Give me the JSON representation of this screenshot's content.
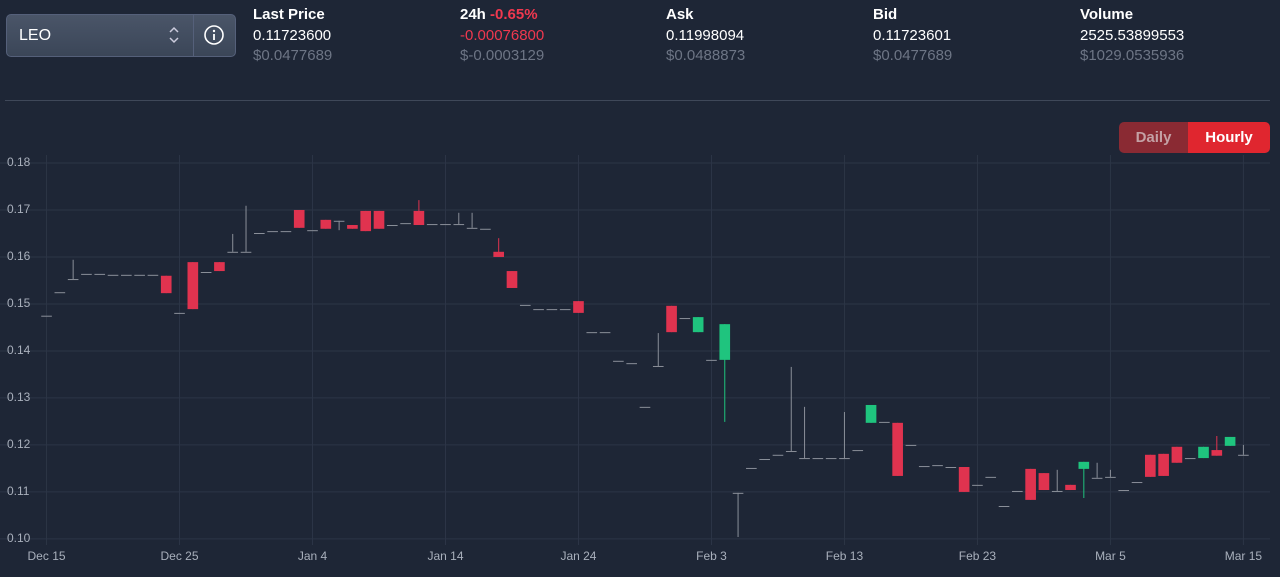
{
  "header": {
    "pair": "LEO",
    "stats": [
      {
        "label": "Last Price",
        "value": "0.11723600",
        "usd": "$0.0477689"
      },
      {
        "label": "24h",
        "change": "-0.65%",
        "value": "-0.00076800",
        "usd": "$-0.0003129"
      },
      {
        "label": "Ask",
        "value": "0.11998094",
        "usd": "$0.0488873"
      },
      {
        "label": "Bid",
        "value": "0.11723601",
        "usd": "$0.0477689"
      },
      {
        "label": "Volume",
        "value": "2525.53899553",
        "usd": "$1029.0535936"
      }
    ],
    "buttons": [
      "Daily",
      "Hourly"
    ]
  },
  "chart_data": {
    "type": "candlestick",
    "x": [
      0,
      1,
      2,
      3,
      4,
      5,
      6,
      7,
      8,
      9,
      10,
      11,
      12,
      13,
      14,
      15,
      16,
      17,
      18,
      19,
      20,
      21,
      22,
      23,
      24,
      25,
      26,
      27,
      28,
      29,
      30,
      31,
      32,
      33,
      34,
      35,
      36,
      37,
      38,
      39,
      40,
      41,
      42,
      43,
      44,
      45,
      46,
      47,
      48,
      49,
      50,
      51,
      52,
      53,
      54,
      55,
      56,
      57,
      58,
      59,
      60,
      61,
      62,
      63,
      64,
      65,
      66,
      67,
      68,
      69,
      70,
      71,
      72,
      73,
      74,
      75,
      76,
      77,
      78,
      79,
      80,
      81,
      82,
      83,
      84,
      85,
      86,
      87,
      88,
      89,
      90
    ],
    "open": [
      0.1475,
      0.1525,
      0.1553,
      0.1564,
      0.1564,
      0.1562,
      0.1562,
      0.1562,
      0.1562,
      0.156,
      0.1481,
      0.1589,
      0.1568,
      0.1589,
      0.1611,
      0.1611,
      0.1651,
      0.1655,
      0.1655,
      0.17,
      0.1657,
      0.1679,
      0.1677,
      0.1668,
      0.1698,
      0.1698,
      0.1668,
      0.1672,
      0.1698,
      0.167,
      0.167,
      0.167,
      0.1662,
      0.166,
      0.1611,
      0.157,
      0.1498,
      0.1489,
      0.1489,
      0.1489,
      0.1506,
      0.144,
      0.144,
      0.1379,
      0.1374,
      0.1281,
      0.1368,
      0.1496,
      0.147,
      0.144,
      0.1381,
      0.1381,
      0.1098,
      0.1151,
      0.117,
      0.1179,
      0.1187,
      0.1172,
      0.1172,
      0.1172,
      0.1172,
      0.1189,
      0.1247,
      0.1249,
      0.1247,
      0.12,
      0.1155,
      0.1157,
      0.1153,
      0.1153,
      0.1115,
      0.1132,
      0.107,
      0.1102,
      0.1149,
      0.114,
      0.1102,
      0.1115,
      0.1149,
      0.113,
      0.1132,
      0.1104,
      0.1121,
      0.1179,
      0.1181,
      0.1196,
      0.1172,
      0.1172,
      0.1189,
      0.1198,
      0.1179
    ],
    "high": [
      0.1475,
      0.1525,
      0.1594,
      0.1564,
      0.1564,
      0.1562,
      0.1562,
      0.1562,
      0.1562,
      0.156,
      0.1481,
      0.1589,
      0.1568,
      0.1589,
      0.1649,
      0.1709,
      0.1651,
      0.1655,
      0.1655,
      0.17,
      0.1657,
      0.1679,
      0.1677,
      0.1668,
      0.1698,
      0.1698,
      0.1668,
      0.1672,
      0.1721,
      0.167,
      0.167,
      0.1694,
      0.1694,
      0.166,
      0.164,
      0.157,
      0.1498,
      0.1489,
      0.1489,
      0.1489,
      0.1506,
      0.144,
      0.144,
      0.1379,
      0.1374,
      0.1281,
      0.1438,
      0.1496,
      0.147,
      0.1472,
      0.1381,
      0.1457,
      0.1098,
      0.1151,
      0.117,
      0.1179,
      0.1366,
      0.1281,
      0.1172,
      0.1172,
      0.127,
      0.1189,
      0.1285,
      0.1249,
      0.1247,
      0.12,
      0.1155,
      0.1157,
      0.1153,
      0.1153,
      0.1115,
      0.1132,
      0.107,
      0.1102,
      0.1149,
      0.114,
      0.1147,
      0.1115,
      0.1164,
      0.1162,
      0.1147,
      0.1104,
      0.1121,
      0.1179,
      0.1181,
      0.1196,
      0.1172,
      0.1196,
      0.1219,
      0.1217,
      0.12
    ],
    "low": [
      0.1475,
      0.1525,
      0.1553,
      0.1564,
      0.1564,
      0.1562,
      0.1562,
      0.1562,
      0.1562,
      0.1523,
      0.1481,
      0.1489,
      0.1568,
      0.157,
      0.1611,
      0.1611,
      0.1651,
      0.1655,
      0.1655,
      0.1662,
      0.1657,
      0.166,
      0.1657,
      0.166,
      0.1655,
      0.166,
      0.1668,
      0.1672,
      0.1668,
      0.167,
      0.167,
      0.167,
      0.1662,
      0.166,
      0.16,
      0.1534,
      0.1498,
      0.1489,
      0.1489,
      0.1489,
      0.1481,
      0.144,
      0.144,
      0.1379,
      0.1374,
      0.1281,
      0.1368,
      0.144,
      0.147,
      0.144,
      0.1381,
      0.1249,
      0.1004,
      0.1151,
      0.117,
      0.1179,
      0.1187,
      0.1172,
      0.1172,
      0.1172,
      0.1172,
      0.1189,
      0.1247,
      0.1249,
      0.1134,
      0.12,
      0.1155,
      0.1157,
      0.1153,
      0.11,
      0.1115,
      0.1132,
      0.107,
      0.1102,
      0.1083,
      0.1104,
      0.1102,
      0.1104,
      0.1087,
      0.113,
      0.1132,
      0.1104,
      0.1121,
      0.1132,
      0.1134,
      0.1162,
      0.1172,
      0.1172,
      0.1177,
      0.1198,
      0.1179
    ],
    "close": [
      0.1475,
      0.1525,
      0.1553,
      0.1564,
      0.1564,
      0.1562,
      0.1562,
      0.1562,
      0.1562,
      0.1523,
      0.1481,
      0.1489,
      0.1568,
      0.157,
      0.1611,
      0.1611,
      0.1651,
      0.1655,
      0.1655,
      0.1662,
      0.1657,
      0.166,
      0.1677,
      0.166,
      0.1655,
      0.166,
      0.1668,
      0.1672,
      0.1668,
      0.167,
      0.167,
      0.167,
      0.1662,
      0.166,
      0.16,
      0.1534,
      0.1498,
      0.1489,
      0.1489,
      0.1489,
      0.1481,
      0.144,
      0.144,
      0.1379,
      0.1374,
      0.1281,
      0.1368,
      0.144,
      0.147,
      0.1472,
      0.1381,
      0.1457,
      0.1098,
      0.1151,
      0.117,
      0.1179,
      0.1187,
      0.1172,
      0.1172,
      0.1172,
      0.1172,
      0.1189,
      0.1285,
      0.1249,
      0.1134,
      0.12,
      0.1155,
      0.1157,
      0.1153,
      0.11,
      0.1115,
      0.1132,
      0.107,
      0.1102,
      0.1083,
      0.1104,
      0.1102,
      0.1104,
      0.1164,
      0.113,
      0.1132,
      0.1104,
      0.1121,
      0.1132,
      0.1134,
      0.1162,
      0.1172,
      0.1196,
      0.1177,
      0.1217,
      0.1179
    ],
    "up_color": "#1fc47e",
    "down_color": "#e0334f",
    "flat_color": "#8a8f99",
    "xlim": [
      -3.5,
      92
    ],
    "xticks": [
      {
        "value": 0,
        "label": "Dec 15"
      },
      {
        "value": 10,
        "label": "Dec 25"
      },
      {
        "value": 20,
        "label": "Jan 4"
      },
      {
        "value": 30,
        "label": "Jan 14"
      },
      {
        "value": 40,
        "label": "Jan 24"
      },
      {
        "value": 50,
        "label": "Feb 3"
      },
      {
        "value": 60,
        "label": "Feb 13"
      },
      {
        "value": 70,
        "label": "Feb 23"
      },
      {
        "value": 80,
        "label": "Mar 5"
      },
      {
        "value": 90,
        "label": "Mar 15"
      }
    ],
    "ylim": [
      0.0987,
      0.1817
    ],
    "yticks": [
      {
        "value": 0.1,
        "label": "0.10"
      },
      0.11,
      0.12,
      0.13,
      0.14,
      0.15,
      0.16,
      0.17,
      0.18
    ],
    "grid": true
  }
}
